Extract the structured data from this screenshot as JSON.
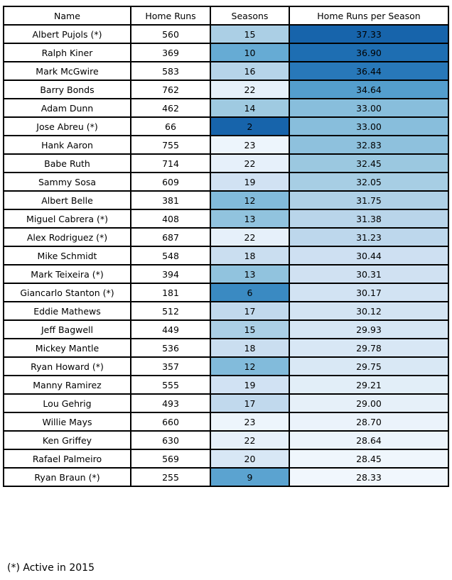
{
  "chart_data": {
    "type": "table",
    "columns": [
      "Name",
      "Home Runs",
      "Seasons",
      "Home Runs per Season"
    ],
    "rows": [
      {
        "name": "Albert Pujols (*)",
        "home_runs": "560",
        "seasons": "15",
        "hr_per_season": "37.33"
      },
      {
        "name": "Ralph Kiner",
        "home_runs": "369",
        "seasons": "10",
        "hr_per_season": "36.90"
      },
      {
        "name": "Mark McGwire",
        "home_runs": "583",
        "seasons": "16",
        "hr_per_season": "36.44"
      },
      {
        "name": "Barry Bonds",
        "home_runs": "762",
        "seasons": "22",
        "hr_per_season": "34.64"
      },
      {
        "name": "Adam Dunn",
        "home_runs": "462",
        "seasons": "14",
        "hr_per_season": "33.00"
      },
      {
        "name": "Jose Abreu (*)",
        "home_runs": "66",
        "seasons": "2",
        "hr_per_season": "33.00"
      },
      {
        "name": "Hank Aaron",
        "home_runs": "755",
        "seasons": "23",
        "hr_per_season": "32.83"
      },
      {
        "name": "Babe Ruth",
        "home_runs": "714",
        "seasons": "22",
        "hr_per_season": "32.45"
      },
      {
        "name": "Sammy Sosa",
        "home_runs": "609",
        "seasons": "19",
        "hr_per_season": "32.05"
      },
      {
        "name": "Albert Belle",
        "home_runs": "381",
        "seasons": "12",
        "hr_per_season": "31.75"
      },
      {
        "name": "Miguel Cabrera (*)",
        "home_runs": "408",
        "seasons": "13",
        "hr_per_season": "31.38"
      },
      {
        "name": "Alex Rodriguez (*)",
        "home_runs": "687",
        "seasons": "22",
        "hr_per_season": "31.23"
      },
      {
        "name": "Mike Schmidt",
        "home_runs": "548",
        "seasons": "18",
        "hr_per_season": "30.44"
      },
      {
        "name": "Mark Teixeira (*)",
        "home_runs": "394",
        "seasons": "13",
        "hr_per_season": "30.31"
      },
      {
        "name": "Giancarlo Stanton (*)",
        "home_runs": "181",
        "seasons": "6",
        "hr_per_season": "30.17"
      },
      {
        "name": "Eddie Mathews",
        "home_runs": "512",
        "seasons": "17",
        "hr_per_season": "30.12"
      },
      {
        "name": "Jeff Bagwell",
        "home_runs": "449",
        "seasons": "15",
        "hr_per_season": "29.93"
      },
      {
        "name": "Mickey Mantle",
        "home_runs": "536",
        "seasons": "18",
        "hr_per_season": "29.78"
      },
      {
        "name": "Ryan Howard (*)",
        "home_runs": "357",
        "seasons": "12",
        "hr_per_season": "29.75"
      },
      {
        "name": "Manny Ramirez",
        "home_runs": "555",
        "seasons": "19",
        "hr_per_season": "29.21"
      },
      {
        "name": "Lou Gehrig",
        "home_runs": "493",
        "seasons": "17",
        "hr_per_season": "29.00"
      },
      {
        "name": "Willie Mays",
        "home_runs": "660",
        "seasons": "23",
        "hr_per_season": "28.70"
      },
      {
        "name": "Ken Griffey",
        "home_runs": "630",
        "seasons": "22",
        "hr_per_season": "28.64"
      },
      {
        "name": "Rafael Palmeiro",
        "home_runs": "569",
        "seasons": "20",
        "hr_per_season": "28.45"
      },
      {
        "name": "Ryan Braun (*)",
        "home_runs": "255",
        "seasons": "9",
        "hr_per_season": "28.33"
      }
    ],
    "color_scale": {
      "colormap": "Blues",
      "colored_columns": [
        "Seasons",
        "Home Runs per Season"
      ],
      "seasons_reversed": true
    },
    "footnote": "(*) Active in 2015"
  }
}
